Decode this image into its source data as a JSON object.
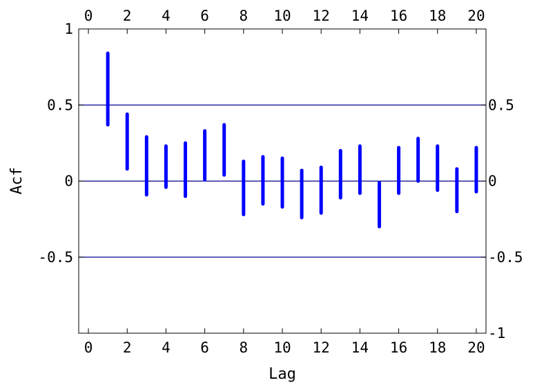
{
  "chart_data": {
    "type": "interval",
    "title": "",
    "xlabel": "Lag",
    "ylabel": "Acf",
    "xlim": [
      -0.5,
      20.5
    ],
    "ylim": [
      -1,
      1
    ],
    "x_ticks": [
      0,
      2,
      4,
      6,
      8,
      10,
      12,
      14,
      16,
      18,
      20
    ],
    "y_ticks_left": [
      1,
      0.5,
      0,
      -0.5
    ],
    "y_ticks_right": [
      0.5,
      0,
      -0.5,
      -1
    ],
    "y_tick_labels_left": [
      "1",
      "0.5",
      "0",
      "-0.5"
    ],
    "y_tick_labels_right": [
      "0.5",
      "0",
      "-0.5",
      "-1"
    ],
    "reference_lines": [
      0.5,
      0,
      -0.5
    ],
    "colors": {
      "intervals": "#0000ff",
      "reference_lines": "#00008b",
      "frame": "#000000"
    },
    "intervals": [
      {
        "lag": 1,
        "low": 0.37,
        "high": 0.84
      },
      {
        "lag": 2,
        "low": 0.08,
        "high": 0.44
      },
      {
        "lag": 3,
        "low": -0.09,
        "high": 0.29
      },
      {
        "lag": 4,
        "low": -0.04,
        "high": 0.23
      },
      {
        "lag": 5,
        "low": -0.1,
        "high": 0.25
      },
      {
        "lag": 6,
        "low": 0.01,
        "high": 0.33
      },
      {
        "lag": 7,
        "low": 0.04,
        "high": 0.37
      },
      {
        "lag": 8,
        "low": -0.22,
        "high": 0.13
      },
      {
        "lag": 9,
        "low": -0.15,
        "high": 0.16
      },
      {
        "lag": 10,
        "low": -0.17,
        "high": 0.15
      },
      {
        "lag": 11,
        "low": -0.24,
        "high": 0.07
      },
      {
        "lag": 12,
        "low": -0.21,
        "high": 0.09
      },
      {
        "lag": 13,
        "low": -0.11,
        "high": 0.2
      },
      {
        "lag": 14,
        "low": -0.08,
        "high": 0.23
      },
      {
        "lag": 15,
        "low": -0.3,
        "high": -0.01
      },
      {
        "lag": 16,
        "low": -0.08,
        "high": 0.22
      },
      {
        "lag": 17,
        "low": 0.0,
        "high": 0.28
      },
      {
        "lag": 18,
        "low": -0.06,
        "high": 0.23
      },
      {
        "lag": 19,
        "low": -0.2,
        "high": 0.08
      },
      {
        "lag": 20,
        "low": -0.07,
        "high": 0.22
      }
    ]
  }
}
